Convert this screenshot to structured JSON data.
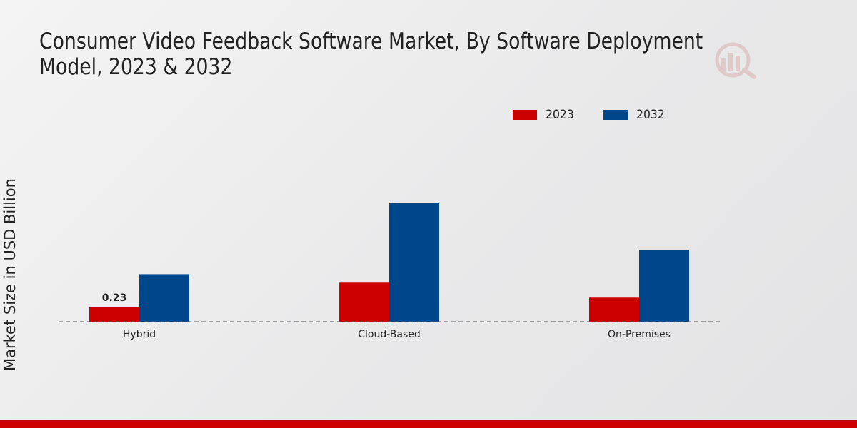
{
  "chart_data": {
    "type": "bar",
    "title": "Consumer Video Feedback Software Market, By Software Deployment Model, 2023 & 2032",
    "xlabel": "",
    "ylabel": "Market Size in USD Billion",
    "categories": [
      "Hybrid",
      "Cloud-Based",
      "On-Premises"
    ],
    "series": [
      {
        "name": "2023",
        "color": "#cc0000",
        "values": [
          0.23,
          0.6,
          0.37
        ]
      },
      {
        "name": "2032",
        "color": "#00468b",
        "values": [
          0.73,
          1.83,
          1.1
        ]
      }
    ],
    "data_labels": [
      {
        "series": "2023",
        "category": "Hybrid",
        "text": "0.23"
      }
    ],
    "ylim": [
      0,
      3.3
    ],
    "grid": false,
    "legend": "top-center"
  },
  "colors": {
    "accent_red": "#cc0000",
    "accent_blue": "#00468b",
    "axis_line": "#555555"
  }
}
